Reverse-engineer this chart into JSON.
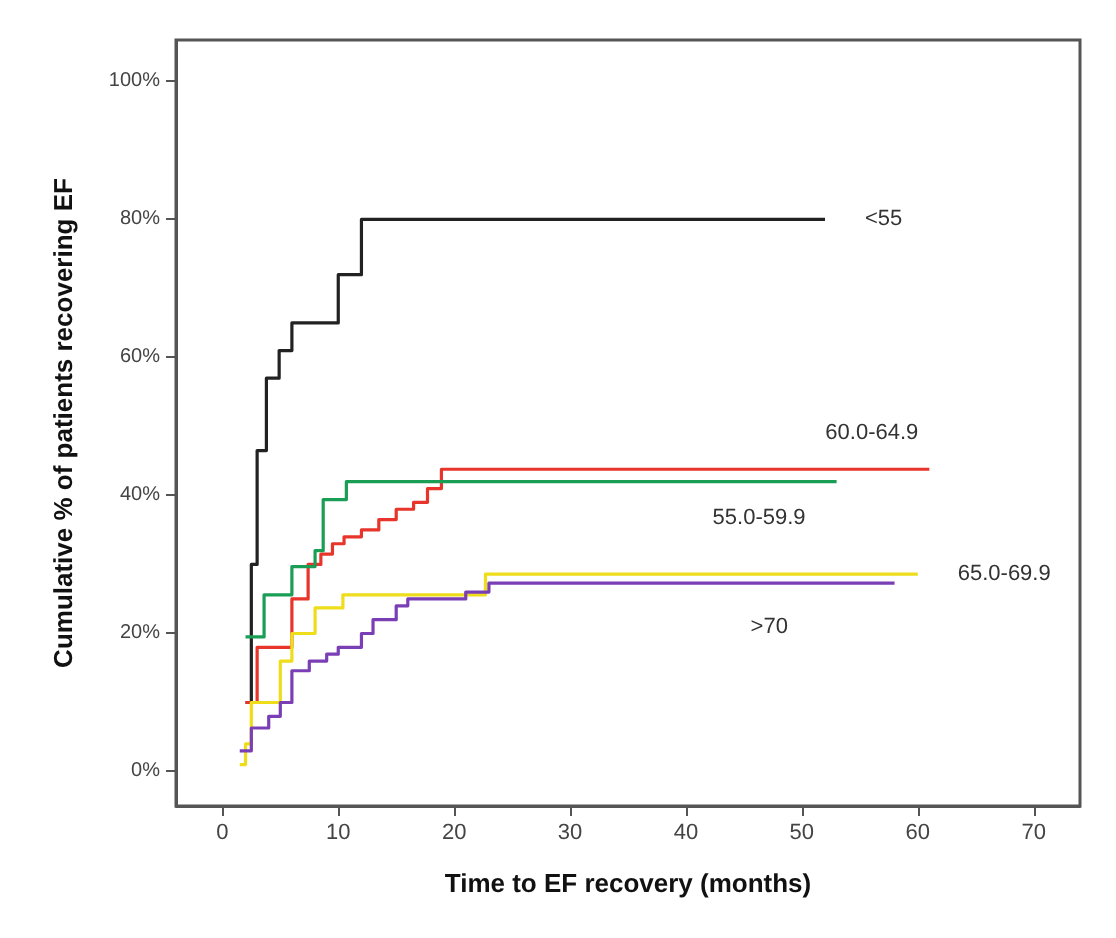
{
  "chart_data": {
    "type": "step",
    "xlabel": "Time to EF recovery (months)",
    "ylabel": "Cumulative % of patients recovering EF",
    "xlim": [
      -4,
      74
    ],
    "ylim": [
      -5,
      106
    ],
    "xticks": [
      0,
      10,
      20,
      30,
      40,
      50,
      60,
      70
    ],
    "yticks": [
      {
        "value": 0,
        "label": "0%"
      },
      {
        "value": 20,
        "label": "20%"
      },
      {
        "value": 40,
        "label": "40%"
      },
      {
        "value": 60,
        "label": "60%"
      },
      {
        "value": 80,
        "label": "80%"
      },
      {
        "value": 100,
        "label": "100%"
      }
    ],
    "grid": false,
    "legend": false,
    "marker": "none",
    "series": [
      {
        "name": "<55",
        "color": "#222222",
        "x": [
          2,
          2.5,
          3,
          3.8,
          4.9,
          6,
          10,
          12,
          52
        ],
        "values": [
          10,
          30,
          46.5,
          57,
          61,
          65,
          72,
          80,
          80
        ]
      },
      {
        "name": "60.0-64.9",
        "color": "#e8352b",
        "x": [
          2,
          3,
          6,
          7.4,
          8.5,
          9.5,
          10.5,
          12,
          13.5,
          15,
          16.5,
          17.7,
          18.9,
          61
        ],
        "values": [
          10,
          18,
          25,
          30,
          31.5,
          33,
          34,
          35,
          36.5,
          38,
          39,
          41,
          43.8,
          43.8
        ]
      },
      {
        "name": "55.0-59.9",
        "color": "#1a9e55",
        "x": [
          2,
          3.6,
          6,
          8,
          8.7,
          10.7,
          53
        ],
        "values": [
          19.5,
          25.6,
          29.7,
          32,
          39.4,
          42,
          42
        ]
      },
      {
        "name": "65.0-69.9",
        "color": "#eedd1a",
        "x": [
          1.5,
          2,
          2.5,
          5,
          6,
          8,
          10.4,
          22.7,
          60
        ],
        "values": [
          1,
          4,
          10,
          16,
          20,
          23.7,
          25.6,
          28.6,
          28.6
        ]
      },
      {
        "name": ">70",
        "color": "#7b3fb5",
        "x": [
          1.5,
          2.5,
          4,
          5,
          6,
          7.5,
          9,
          10,
          12,
          13,
          15,
          16,
          21,
          23,
          58
        ],
        "values": [
          3,
          6.3,
          8,
          10,
          14.6,
          16,
          17,
          18,
          20,
          22,
          24,
          25,
          26,
          27.3,
          27.3
        ]
      }
    ]
  }
}
